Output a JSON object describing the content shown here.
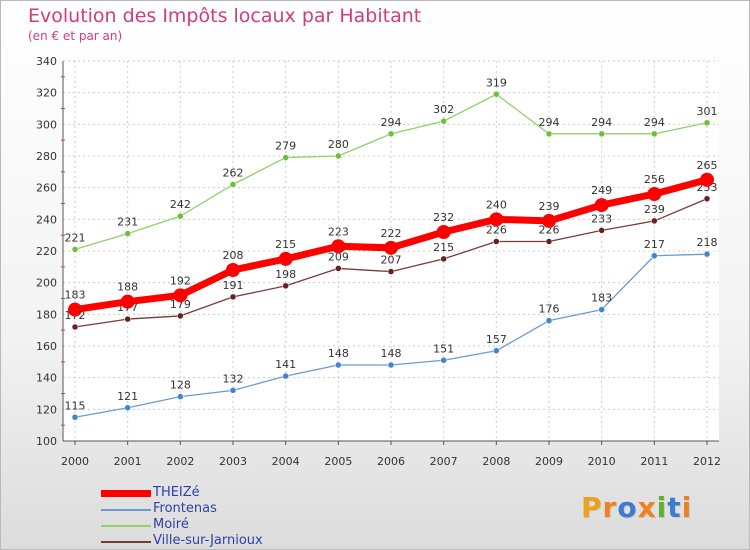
{
  "title": "Evolution des Impôts locaux par Habitant",
  "subtitle": "(en € et par an)",
  "logo": {
    "letters": [
      "P",
      "r",
      "o",
      "x",
      "i",
      "t",
      "i"
    ],
    "colors": [
      "#f0a020",
      "#f08020",
      "#3f7ad0",
      "#f08020",
      "#60b030",
      "#3f7ad0",
      "#f08020"
    ]
  },
  "chart_data": {
    "type": "line",
    "x": [
      "2000",
      "2001",
      "2002",
      "2003",
      "2004",
      "2005",
      "2006",
      "2007",
      "2008",
      "2009",
      "2010",
      "2011",
      "2012"
    ],
    "ylim": [
      100,
      340
    ],
    "yticks": [
      100,
      120,
      140,
      160,
      180,
      200,
      220,
      240,
      260,
      280,
      300,
      320,
      340
    ],
    "grid": true,
    "legend_position": "bottom-left",
    "series": [
      {
        "name": "Moiré",
        "color": "#8fd16a",
        "marker": "#6cc13a",
        "values": [
          221,
          231,
          242,
          262,
          279,
          280,
          294,
          302,
          319,
          294,
          294,
          294,
          301
        ]
      },
      {
        "name": "Ville-sur-Jarnioux",
        "color": "#7a3a3a",
        "marker": "#6a1f1f",
        "values": [
          172,
          177,
          179,
          191,
          198,
          209,
          207,
          215,
          226,
          226,
          233,
          239,
          253
        ]
      },
      {
        "name": "THEIZé",
        "color": "#ff0000",
        "marker": "#ff0000",
        "values": [
          183,
          188,
          192,
          208,
          215,
          223,
          222,
          232,
          240,
          239,
          249,
          256,
          265
        ]
      },
      {
        "name": "Frontenas",
        "color": "#6b9bd1",
        "marker": "#3f86cf",
        "values": [
          115,
          121,
          128,
          132,
          141,
          148,
          148,
          151,
          157,
          176,
          183,
          217,
          218
        ]
      }
    ],
    "legend_order": [
      "THEIZé",
      "Frontenas",
      "Moiré",
      "Ville-sur-Jarnioux"
    ]
  }
}
